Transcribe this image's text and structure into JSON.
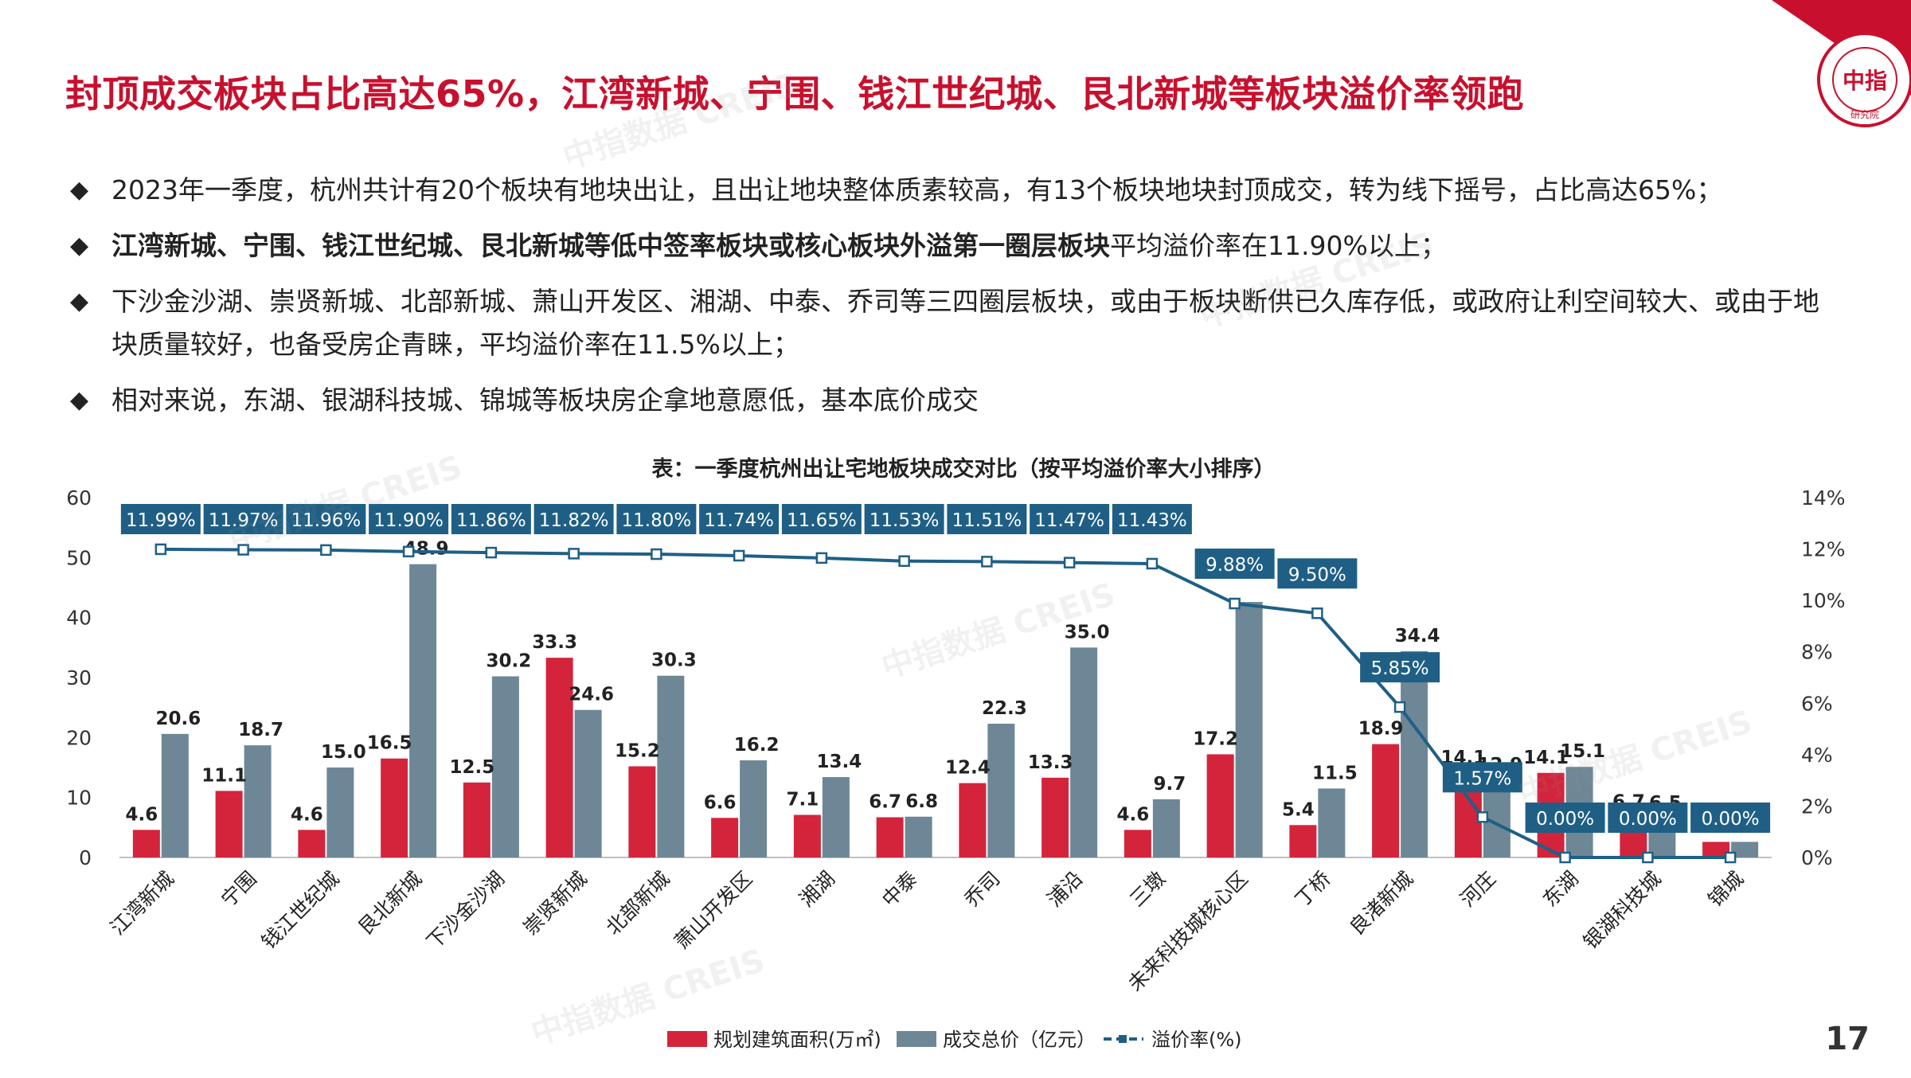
{
  "page": {
    "title": "封顶成交板块占比高达65%，江湾新城、宁围、钱江世纪城、艮北新城等板块溢价率领跑",
    "logo_text": "CHINA INDEX ACADEMY",
    "logo_center": "中指",
    "logo_sub": "研究院",
    "page_number": "17",
    "watermark": "中指数据 CREIS"
  },
  "bullets": [
    {
      "bold": "",
      "text": "2023年一季度，杭州共计有20个板块有地块出让，且出让地块整体质素较高，有13个板块地块封顶成交，转为线下摇号，占比高达65%；"
    },
    {
      "bold": "江湾新城、宁围、钱江世纪城、艮北新城等低中签率板块或核心板块外溢第一圈层板块",
      "text": "平均溢价率在11.90%以上；"
    },
    {
      "bold": "",
      "text": "下沙金沙湖、崇贤新城、北部新城、萧山开发区、湘湖、中泰、乔司等三四圈层板块，或由于板块断供已久库存低，或政府让利空间较大、或由于地块质量较好，也备受房企青睐，平均溢价率在11.5%以上；"
    },
    {
      "bold": "",
      "text": "相对来说，东湖、银湖科技城、锦城等板块房企拿地意愿低，基本底价成交"
    }
  ],
  "chart_data": {
    "type": "bar",
    "title": "表：一季度杭州出让宅地板块成交对比（按平均溢价率大小排序）",
    "categories": [
      "江湾新城",
      "宁围",
      "钱江世纪城",
      "艮北新城",
      "下沙金沙湖",
      "崇贤新城",
      "北部新城",
      "萧山开发区",
      "湘湖",
      "中泰",
      "乔司",
      "浦沿",
      "三墩",
      "未来科技城核心区",
      "丁桥",
      "良渚新城",
      "河庄",
      "东湖",
      "银湖科技城",
      "锦城"
    ],
    "series": [
      {
        "name": "规划建筑面积(万㎡)",
        "kind": "bar",
        "axis": "left",
        "color": "#d3243c",
        "values": [
          4.6,
          11.1,
          4.6,
          16.5,
          12.5,
          33.3,
          15.2,
          6.6,
          7.1,
          6.7,
          12.4,
          13.3,
          4.6,
          17.2,
          5.4,
          18.9,
          14.1,
          14.1,
          6.7,
          2.6
        ],
        "labels": [
          "4.6",
          "11.1",
          "4.6",
          "16.5",
          "12.5",
          "33.3",
          "15.2",
          "6.6",
          "7.1",
          "6.7",
          "12.4",
          "13.3",
          "4.6",
          "17.2",
          "5.4",
          "18.9",
          "14.1",
          "14.1",
          "6.7",
          "2.6"
        ]
      },
      {
        "name": "成交总价（亿元）",
        "kind": "bar",
        "axis": "left",
        "color": "#6e8796",
        "values": [
          20.6,
          18.7,
          15.0,
          48.9,
          30.2,
          24.6,
          30.3,
          16.2,
          13.4,
          6.8,
          22.3,
          35.0,
          9.7,
          42.6,
          11.5,
          34.4,
          12.9,
          15.1,
          6.5,
          2.6
        ],
        "labels": [
          "20.6",
          "18.7",
          "15.0",
          "48.9",
          "30.2",
          "24.6",
          "30.3",
          "16.2",
          "13.4",
          "6.8",
          "22.3",
          "35.0",
          "9.7",
          "",
          "11.5",
          "34.4",
          "12.9",
          "15.1",
          "6.5",
          ""
        ]
      },
      {
        "name": "溢价率(%)",
        "kind": "line",
        "axis": "right",
        "color": "#1f5f86",
        "values": [
          11.99,
          11.97,
          11.96,
          11.9,
          11.86,
          11.82,
          11.8,
          11.74,
          11.65,
          11.53,
          11.51,
          11.47,
          11.43,
          9.88,
          9.5,
          5.85,
          1.57,
          0.0,
          0.0,
          0.0
        ],
        "labels": [
          "11.99%",
          "11.97%",
          "11.96%",
          "11.90%",
          "11.86%",
          "11.82%",
          "11.80%",
          "11.74%",
          "11.65%",
          "11.53%",
          "11.51%",
          "11.47%",
          "11.43%",
          "9.88%",
          "9.50%",
          "5.85%",
          "1.57%",
          "0.00%",
          "0.00%",
          "0.00%"
        ]
      }
    ],
    "ylim_left": [
      0,
      60
    ],
    "yticks_left": [
      "0",
      "10",
      "20",
      "30",
      "40",
      "50",
      "60"
    ],
    "ylim_right": [
      0,
      14
    ],
    "yticks_right": [
      "0%",
      "2%",
      "4%",
      "6%",
      "8%",
      "10%",
      "12%",
      "14%"
    ],
    "grid": false,
    "legend": "bottom"
  }
}
